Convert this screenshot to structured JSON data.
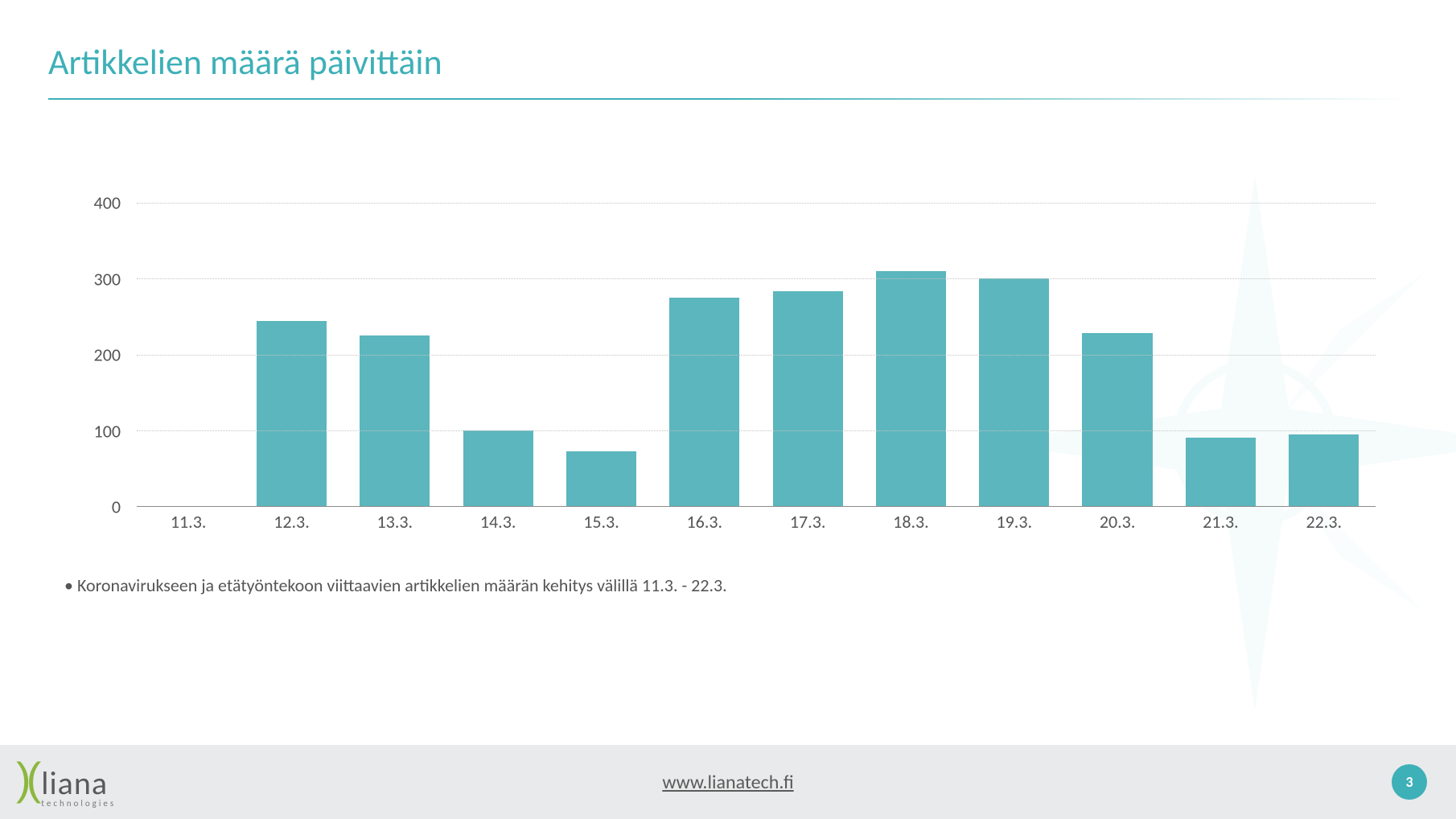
{
  "title": "Artikkelien määrä päivittäin",
  "title_color": "#3eb0b8",
  "chart": {
    "type": "bar",
    "categories": [
      "11.3.",
      "12.3.",
      "13.3.",
      "14.3.",
      "15.3.",
      "16.3.",
      "17.3.",
      "18.3.",
      "19.3.",
      "20.3.",
      "21.3.",
      "22.3."
    ],
    "values": [
      0,
      244,
      225,
      100,
      72,
      275,
      284,
      310,
      300,
      228,
      90,
      95
    ],
    "bar_color": "#5bb6bd",
    "ylim": [
      0,
      430
    ],
    "ytick_step": 100,
    "yticks": [
      0,
      100,
      200,
      300,
      400
    ],
    "grid_color": "#c5c5c5",
    "axis_color": "#8b8b8b",
    "label_color": "#555555",
    "label_fontsize": 22,
    "bar_width": 0.68,
    "background_color": "#ffffff"
  },
  "footnote_bullet": "•",
  "footnote": "Koronavirukseen ja etätyöntekoon viittaavien artikkelien määrän kehitys välillä 11.3. - 22.3.",
  "footer": {
    "link_text": "www.lianatech.fi",
    "page_number": "3",
    "logo_main": "liana",
    "logo_sub": "technologies",
    "logo_mark_color": "#8cb73e",
    "badge_color": "#3eb0b8",
    "bg_color": "#e9eaeb"
  }
}
